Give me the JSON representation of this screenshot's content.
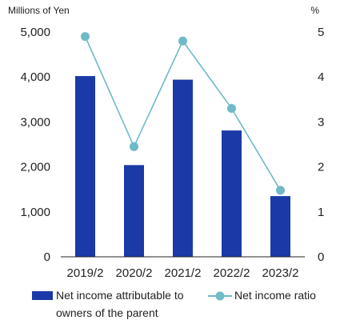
{
  "chart_data": {
    "type": "bar",
    "categories": [
      "2019/2",
      "2020/2",
      "2021/2",
      "2022/2",
      "2023/2"
    ],
    "series": [
      {
        "name": "Net income attributable to owners of the parent",
        "type": "bar",
        "axis": "left",
        "color": "#1b3aa8",
        "values": [
          4020,
          2040,
          3940,
          2810,
          1350
        ]
      },
      {
        "name": "Net income ratio",
        "type": "line",
        "axis": "right",
        "color": "#6fb9c9",
        "values": [
          4.9,
          2.45,
          4.8,
          3.3,
          1.48
        ]
      }
    ],
    "y_left": {
      "unit": "Millions of Yen",
      "range": [
        0,
        5000
      ],
      "ticks": [
        "0",
        "1,000",
        "2,000",
        "3,000",
        "4,000",
        "5,000"
      ]
    },
    "y_right": {
      "unit": "%",
      "range": [
        0,
        5
      ],
      "ticks": [
        "0",
        "1",
        "2",
        "3",
        "4",
        "5"
      ]
    },
    "legend": {
      "bar_label_line1": "Net income attributable to",
      "bar_label_line2": "owners of the parent",
      "line_label": "Net income ratio",
      "position": "bottom"
    },
    "grid": false
  }
}
